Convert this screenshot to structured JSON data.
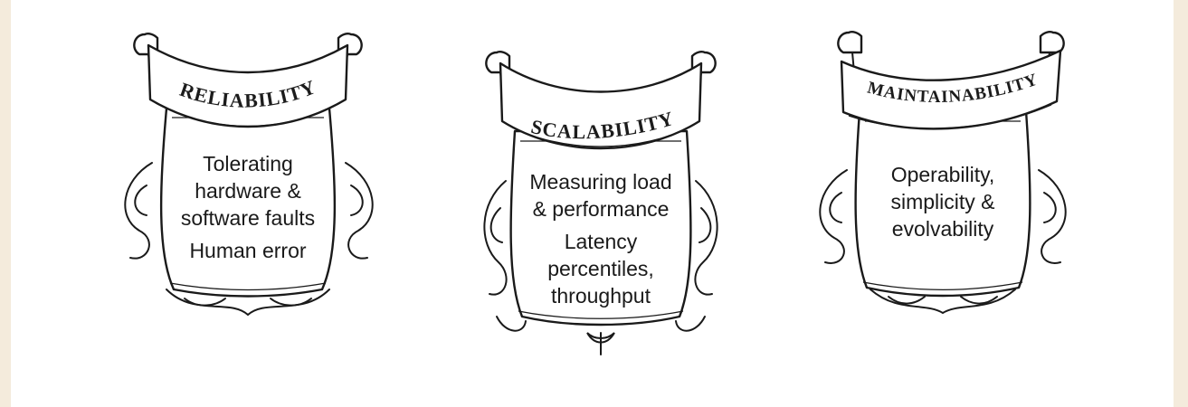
{
  "shields": [
    {
      "title": "RELIABILITY",
      "paragraphs": [
        [
          "Tolerating",
          "hardware &",
          "software faults"
        ],
        [
          "Human error"
        ]
      ]
    },
    {
      "title": "SCALABILITY",
      "paragraphs": [
        [
          "Measuring load",
          "& performance"
        ],
        [
          "Latency",
          "percentiles,",
          "throughput"
        ]
      ]
    },
    {
      "title": "MAINTAINABILITY",
      "paragraphs": [
        [
          "Operability,",
          "simplicity &",
          "evolvability"
        ]
      ]
    }
  ]
}
